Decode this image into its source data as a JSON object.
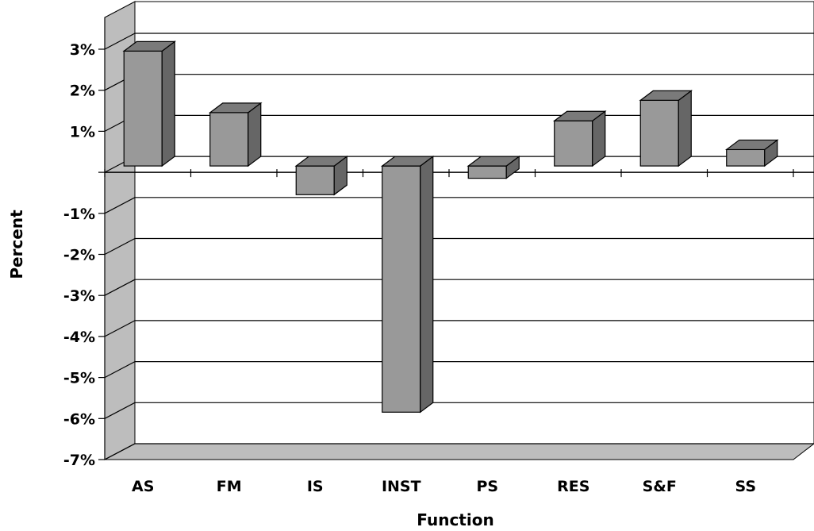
{
  "chart_data": {
    "type": "bar",
    "title": "",
    "xlabel": "Function",
    "ylabel": "Percent",
    "categories": [
      "AS",
      "FM",
      "IS",
      "INST",
      "PS",
      "RES",
      "S&F",
      "SS"
    ],
    "values": [
      2.8,
      1.3,
      -0.7,
      -6.0,
      -0.3,
      1.1,
      1.6,
      0.4
    ],
    "ylim": [
      -7,
      3
    ],
    "yticks": [
      3,
      2,
      1,
      -1,
      -2,
      -3,
      -4,
      -5,
      -6,
      -7
    ],
    "ytick_labels": [
      "3%",
      "2%",
      "1%",
      "-1%",
      "-2%",
      "-3%",
      "-4%",
      "-5%",
      "-6%",
      "-7%"
    ],
    "grid": true,
    "legend": "none",
    "style": "3d",
    "colors": {
      "bar_front": "#999999",
      "bar_side": "#666666",
      "bar_top": "#7a7a7a",
      "back_wall": "#ffffff",
      "side_wall": "#bdbdbd",
      "floor": "#bdbdbd"
    }
  }
}
